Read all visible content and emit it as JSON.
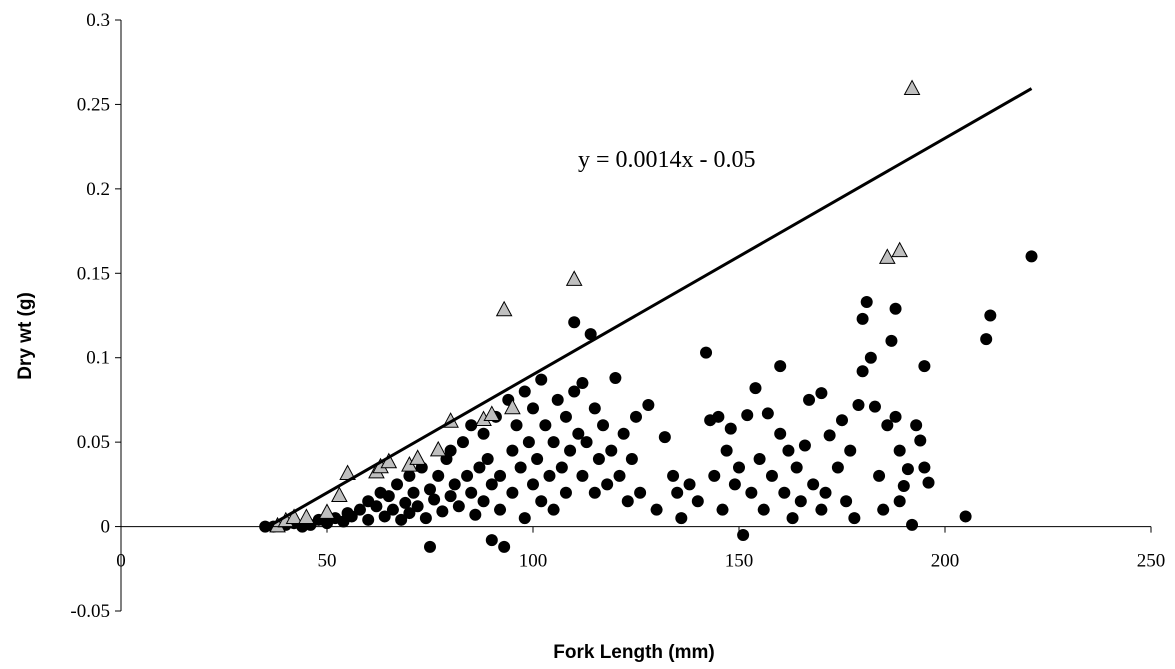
{
  "chart_data": {
    "type": "scatter",
    "title": "",
    "xlabel": "Fork Length (mm)",
    "ylabel": "Dry wt (g)",
    "xlim": [
      0,
      250
    ],
    "ylim": [
      -0.05,
      0.3
    ],
    "x_ticks": [
      "0",
      "50",
      "100",
      "150",
      "200",
      "250"
    ],
    "y_ticks": [
      "-0.05",
      "0",
      "0.05",
      "0.1",
      "0.15",
      "0.2",
      "0.25",
      "0.3"
    ],
    "grid": false,
    "legend": "none",
    "trendline": {
      "label": "y = 0.0014x - 0.05",
      "slope": 0.0014,
      "intercept": -0.05,
      "x_range": [
        36,
        221
      ],
      "color": "#000000"
    },
    "series": [
      {
        "marker": "circle",
        "color": "#000000",
        "points": [
          [
            35,
            0
          ],
          [
            37,
            0
          ],
          [
            40,
            0.001
          ],
          [
            42,
            0.002
          ],
          [
            44,
            0
          ],
          [
            45,
            0.003
          ],
          [
            46,
            0.001
          ],
          [
            48,
            0.004
          ],
          [
            50,
            0.002
          ],
          [
            52,
            0.005
          ],
          [
            54,
            0.003
          ],
          [
            55,
            0.008
          ],
          [
            56,
            0.006
          ],
          [
            58,
            0.01
          ],
          [
            60,
            0.004
          ],
          [
            60,
            0.015
          ],
          [
            62,
            0.012
          ],
          [
            63,
            0.02
          ],
          [
            64,
            0.006
          ],
          [
            65,
            0.018
          ],
          [
            66,
            0.01
          ],
          [
            67,
            0.025
          ],
          [
            68,
            0.004
          ],
          [
            69,
            0.014
          ],
          [
            70,
            0.03
          ],
          [
            70,
            0.008
          ],
          [
            71,
            0.02
          ],
          [
            72,
            0.012
          ],
          [
            73,
            0.035
          ],
          [
            74,
            0.005
          ],
          [
            75,
            -0.012
          ],
          [
            75,
            0.022
          ],
          [
            76,
            0.016
          ],
          [
            77,
            0.03
          ],
          [
            78,
            0.009
          ],
          [
            79,
            0.04
          ],
          [
            80,
            0.018
          ],
          [
            80,
            0.045
          ],
          [
            81,
            0.025
          ],
          [
            82,
            0.012
          ],
          [
            83,
            0.05
          ],
          [
            84,
            0.03
          ],
          [
            85,
            0.02
          ],
          [
            85,
            0.06
          ],
          [
            86,
            0.007
          ],
          [
            87,
            0.035
          ],
          [
            88,
            0.015
          ],
          [
            88,
            0.055
          ],
          [
            89,
            0.04
          ],
          [
            90,
            0.025
          ],
          [
            90,
            -0.008
          ],
          [
            91,
            0.065
          ],
          [
            92,
            0.03
          ],
          [
            92,
            0.01
          ],
          [
            93,
            -0.012
          ],
          [
            94,
            0.075
          ],
          [
            95,
            0.045
          ],
          [
            95,
            0.02
          ],
          [
            96,
            0.06
          ],
          [
            97,
            0.035
          ],
          [
            98,
            0.005
          ],
          [
            98,
            0.08
          ],
          [
            99,
            0.05
          ],
          [
            100,
            0.025
          ],
          [
            100,
            0.07
          ],
          [
            101,
            0.04
          ],
          [
            102,
            0.015
          ],
          [
            102,
            0.087
          ],
          [
            103,
            0.06
          ],
          [
            104,
            0.03
          ],
          [
            105,
            0.05
          ],
          [
            105,
            0.01
          ],
          [
            106,
            0.075
          ],
          [
            107,
            0.035
          ],
          [
            108,
            0.02
          ],
          [
            108,
            0.065
          ],
          [
            109,
            0.045
          ],
          [
            110,
            0.121
          ],
          [
            110,
            0.08
          ],
          [
            111,
            0.055
          ],
          [
            112,
            0.03
          ],
          [
            112,
            0.085
          ],
          [
            113,
            0.05
          ],
          [
            114,
            0.114
          ],
          [
            115,
            0.07
          ],
          [
            115,
            0.02
          ],
          [
            116,
            0.04
          ],
          [
            117,
            0.06
          ],
          [
            118,
            0.025
          ],
          [
            119,
            0.045
          ],
          [
            120,
            0.088
          ],
          [
            121,
            0.03
          ],
          [
            122,
            0.055
          ],
          [
            123,
            0.015
          ],
          [
            124,
            0.04
          ],
          [
            125,
            0.065
          ],
          [
            126,
            0.02
          ],
          [
            128,
            0.072
          ],
          [
            130,
            0.01
          ],
          [
            132,
            0.053
          ],
          [
            134,
            0.03
          ],
          [
            135,
            0.02
          ],
          [
            136,
            0.005
          ],
          [
            138,
            0.025
          ],
          [
            140,
            0.015
          ],
          [
            142,
            0.103
          ],
          [
            143,
            0.063
          ],
          [
            144,
            0.03
          ],
          [
            145,
            0.065
          ],
          [
            146,
            0.01
          ],
          [
            147,
            0.045
          ],
          [
            148,
            0.058
          ],
          [
            149,
            0.025
          ],
          [
            150,
            0.035
          ],
          [
            151,
            -0.005
          ],
          [
            152,
            0.066
          ],
          [
            153,
            0.02
          ],
          [
            154,
            0.082
          ],
          [
            155,
            0.04
          ],
          [
            156,
            0.01
          ],
          [
            157,
            0.067
          ],
          [
            158,
            0.03
          ],
          [
            160,
            0.095
          ],
          [
            160,
            0.055
          ],
          [
            161,
            0.02
          ],
          [
            162,
            0.045
          ],
          [
            163,
            0.005
          ],
          [
            164,
            0.035
          ],
          [
            165,
            0.015
          ],
          [
            166,
            0.048
          ],
          [
            167,
            0.075
          ],
          [
            168,
            0.025
          ],
          [
            170,
            0.079
          ],
          [
            170,
            0.01
          ],
          [
            171,
            0.02
          ],
          [
            172,
            0.054
          ],
          [
            174,
            0.035
          ],
          [
            175,
            0.063
          ],
          [
            176,
            0.015
          ],
          [
            177,
            0.045
          ],
          [
            178,
            0.005
          ],
          [
            179,
            0.072
          ],
          [
            180,
            0.123
          ],
          [
            180,
            0.092
          ],
          [
            181,
            0.133
          ],
          [
            182,
            0.1
          ],
          [
            183,
            0.071
          ],
          [
            184,
            0.03
          ],
          [
            185,
            0.01
          ],
          [
            186,
            0.06
          ],
          [
            187,
            0.11
          ],
          [
            188,
            0.129
          ],
          [
            188,
            0.065
          ],
          [
            189,
            0.015
          ],
          [
            189,
            0.045
          ],
          [
            190,
            0.024
          ],
          [
            191,
            0.034
          ],
          [
            192,
            0.001
          ],
          [
            193,
            0.06
          ],
          [
            194,
            0.051
          ],
          [
            195,
            0.095
          ],
          [
            195,
            0.035
          ],
          [
            196,
            0.026
          ],
          [
            205,
            0.006
          ],
          [
            210,
            0.111
          ],
          [
            211,
            0.125
          ],
          [
            221,
            0.16
          ]
        ]
      },
      {
        "marker": "triangle",
        "color": "#BFBFBF",
        "points": [
          [
            38,
            0
          ],
          [
            40,
            0.003
          ],
          [
            42,
            0.005
          ],
          [
            45,
            0.005
          ],
          [
            50,
            0.008
          ],
          [
            53,
            0.018
          ],
          [
            55,
            0.031
          ],
          [
            62,
            0.032
          ],
          [
            63,
            0.035
          ],
          [
            65,
            0.038
          ],
          [
            70,
            0.036
          ],
          [
            72,
            0.04
          ],
          [
            77,
            0.045
          ],
          [
            80,
            0.062
          ],
          [
            88,
            0.063
          ],
          [
            90,
            0.066
          ],
          [
            93,
            0.128
          ],
          [
            95,
            0.07
          ],
          [
            110,
            0.146
          ],
          [
            186,
            0.159
          ],
          [
            189,
            0.163
          ],
          [
            192,
            0.259
          ]
        ]
      }
    ]
  }
}
